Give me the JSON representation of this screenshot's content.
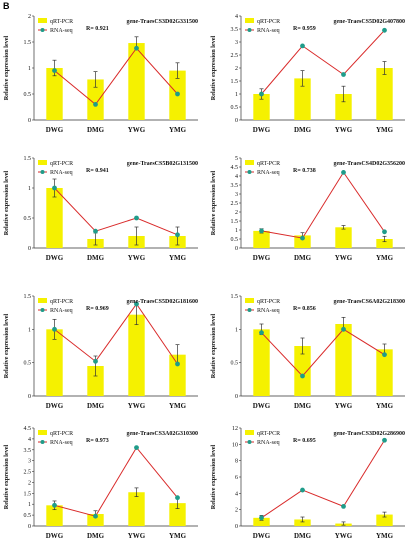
{
  "panel_letter": "B",
  "colors": {
    "bar": "#f5f100",
    "line": "#d92a2a",
    "marker": "#1f9c8a",
    "error": "#333333",
    "axis": "#333333"
  },
  "chart_data": [
    {
      "type": "bar",
      "gene": "gene-TraesCS3D02G331500",
      "r_label": "R= 0.921",
      "ylabel": "Relative expression level",
      "categories": [
        "DWG",
        "DMG",
        "YWG",
        "YMG"
      ],
      "legend": [
        "qRT-PCR",
        "RNA-seq"
      ],
      "ylim": [
        0,
        2
      ],
      "yticks": [
        "0",
        "0.5",
        "1",
        "1.5",
        "2"
      ],
      "series": [
        {
          "name": "qRT-PCR",
          "values": [
            1.0,
            0.78,
            1.48,
            0.95
          ],
          "errors": [
            0.15,
            0.15,
            0.12,
            0.15
          ]
        },
        {
          "name": "RNA-seq",
          "values": [
            0.95,
            0.3,
            1.38,
            0.5
          ]
        }
      ]
    },
    {
      "type": "bar",
      "gene": "gene-TraesCS5D02G407800",
      "r_label": "R= 0.959",
      "ylabel": "Relative expression level",
      "categories": [
        "DWG",
        "DMG",
        "YWG",
        "YMG"
      ],
      "legend": [
        "qRT-PCR",
        "RNA-seq"
      ],
      "ylim": [
        0,
        4
      ],
      "yticks": [
        "0",
        "0.5",
        "1",
        "1.5",
        "2",
        "2.5",
        "3",
        "3.5",
        "4"
      ],
      "series": [
        {
          "name": "qRT-PCR",
          "values": [
            1.0,
            1.6,
            1.0,
            2.0
          ],
          "errors": [
            0.2,
            0.3,
            0.3,
            0.25
          ]
        },
        {
          "name": "RNA-seq",
          "values": [
            1.0,
            2.85,
            1.75,
            3.45
          ]
        }
      ]
    },
    {
      "type": "bar",
      "gene": "gene-TraesCS5B02G131500",
      "r_label": "R= 0.941",
      "ylabel": "Relative expression level",
      "categories": [
        "DWG",
        "DMG",
        "YWG",
        "YMG"
      ],
      "legend": [
        "qRT-PCR",
        "RNA-seq"
      ],
      "ylim": [
        0,
        1.5
      ],
      "yticks": [
        "0",
        "0.5",
        "1",
        "1.5"
      ],
      "series": [
        {
          "name": "qRT-PCR",
          "values": [
            1.0,
            0.15,
            0.2,
            0.2
          ],
          "errors": [
            0.15,
            0.1,
            0.15,
            0.15
          ]
        },
        {
          "name": "RNA-seq",
          "values": [
            1.0,
            0.28,
            0.5,
            0.22
          ]
        }
      ]
    },
    {
      "type": "bar",
      "gene": "gene-TraesCS4D02G356200",
      "r_label": "R= 0.738",
      "ylabel": "Relative expression level",
      "categories": [
        "DWG",
        "DMG",
        "YWG",
        "YMG"
      ],
      "legend": [
        "qRT-PCR",
        "RNA-seq"
      ],
      "ylim": [
        0,
        5
      ],
      "yticks": [
        "0",
        "0.5",
        "1",
        "1.5",
        "2",
        "2.5",
        "3",
        "3.5",
        "4",
        "4.5",
        "5"
      ],
      "series": [
        {
          "name": "qRT-PCR",
          "values": [
            0.95,
            0.7,
            1.15,
            0.5
          ],
          "errors": [
            0.12,
            0.15,
            0.1,
            0.15
          ]
        },
        {
          "name": "RNA-seq",
          "values": [
            0.95,
            0.55,
            4.2,
            0.9
          ]
        }
      ]
    },
    {
      "type": "bar",
      "gene": "gene-TraesCS5D02G181600",
      "r_label": "R= 0.969",
      "ylabel": "Relative expression level",
      "categories": [
        "DWG",
        "DMG",
        "YWG",
        "YMG"
      ],
      "legend": [
        "qRT-PCR",
        "RNA-seq"
      ],
      "ylim": [
        0,
        1.5
      ],
      "yticks": [
        "0",
        "0.5",
        "1",
        "1.5"
      ],
      "series": [
        {
          "name": "qRT-PCR",
          "values": [
            1.0,
            0.45,
            1.22,
            0.62
          ],
          "errors": [
            0.15,
            0.15,
            0.15,
            0.15
          ]
        },
        {
          "name": "RNA-seq",
          "values": [
            1.0,
            0.52,
            1.38,
            0.48
          ]
        }
      ]
    },
    {
      "type": "bar",
      "gene": "gene-TraesCS6A02G218300",
      "r_label": "R= 0.856",
      "ylabel": "Relative expression level",
      "categories": [
        "DWG",
        "DMG",
        "YWG",
        "YMG"
      ],
      "legend": [
        "qRT-PCR",
        "RNA-seq"
      ],
      "ylim": [
        0,
        1.5
      ],
      "yticks": [
        "0",
        "0.5",
        "1",
        "1.5"
      ],
      "series": [
        {
          "name": "qRT-PCR",
          "values": [
            1.0,
            0.75,
            1.08,
            0.7
          ],
          "errors": [
            0.08,
            0.12,
            0.1,
            0.08
          ]
        },
        {
          "name": "RNA-seq",
          "values": [
            0.95,
            0.3,
            1.0,
            0.62
          ]
        }
      ]
    },
    {
      "type": "bar",
      "gene": "gene-TraesCS3A02G310300",
      "r_label": "R= 0.973",
      "ylabel": "Relative expression level",
      "categories": [
        "DWG",
        "DMG",
        "YWG",
        "YMG"
      ],
      "legend": [
        "qRT-PCR",
        "RNA-seq"
      ],
      "ylim": [
        0,
        4.5
      ],
      "yticks": [
        "0",
        "0.5",
        "1",
        "1.5",
        "2",
        "2.5",
        "3",
        "3.5",
        "4",
        "4.5"
      ],
      "series": [
        {
          "name": "qRT-PCR",
          "values": [
            0.95,
            0.55,
            1.55,
            1.05
          ],
          "errors": [
            0.2,
            0.15,
            0.2,
            0.25
          ]
        },
        {
          "name": "RNA-seq",
          "values": [
            0.95,
            0.45,
            3.6,
            1.3
          ]
        }
      ]
    },
    {
      "type": "bar",
      "gene": "gene-TraesCS3D02G286900",
      "r_label": "R= 0.695",
      "ylabel": "Relative expression level",
      "categories": [
        "DWG",
        "DMG",
        "YWG",
        "YMG"
      ],
      "legend": [
        "qRT-PCR",
        "RNA-seq"
      ],
      "ylim": [
        0,
        12
      ],
      "yticks": [
        "0",
        "2",
        "4",
        "6",
        "8",
        "10",
        "12"
      ],
      "series": [
        {
          "name": "qRT-PCR",
          "values": [
            1.0,
            0.8,
            0.3,
            1.4
          ],
          "errors": [
            0.3,
            0.3,
            0.2,
            0.3
          ]
        },
        {
          "name": "RNA-seq",
          "values": [
            1.0,
            4.4,
            2.4,
            10.5
          ]
        }
      ]
    }
  ]
}
